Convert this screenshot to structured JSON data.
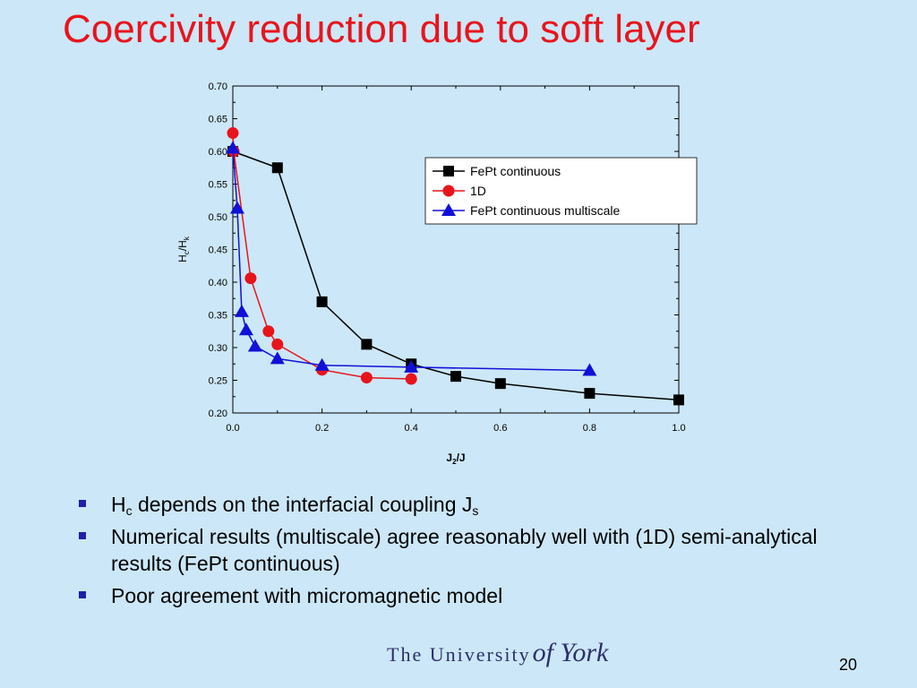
{
  "slide": {
    "title": "Coercivity reduction due to soft layer",
    "bullets": [
      {
        "text_before": "H",
        "sub1": "c",
        "text_mid": " depends on the interfacial coupling J",
        "sub2": "s"
      },
      {
        "text": "Numerical results (multiscale) agree reasonably well with (1D) semi-analytical results (FePt continuous)"
      },
      {
        "text": "Poor agreement with micromagnetic model"
      }
    ],
    "logo_text": "The University",
    "logo_script": "of York",
    "page_number": "20"
  },
  "colors": {
    "background": "#cce7f7",
    "title": "#e8141c",
    "bullet_marker": "#1f1fa8",
    "series_black": "#000000",
    "series_red": "#e8141c",
    "series_blue": "#1010d8"
  },
  "chart_data": {
    "type": "line",
    "title": "",
    "xlabel": {
      "main": "J",
      "sub": "2",
      "rest": "/J"
    },
    "ylabel": {
      "main": "H",
      "sub": "c",
      "mid": "/H",
      "sub2": "k"
    },
    "xlim": [
      0.0,
      1.0
    ],
    "ylim": [
      0.2,
      0.7
    ],
    "xticks": [
      "0.0",
      "0.2",
      "0.4",
      "0.6",
      "0.8",
      "1.0"
    ],
    "yticks": [
      "0.20",
      "0.25",
      "0.30",
      "0.35",
      "0.40",
      "0.45",
      "0.50",
      "0.55",
      "0.60",
      "0.65",
      "0.70"
    ],
    "legend_position": "top-right",
    "grid": false,
    "series": [
      {
        "name": "FePt continuous",
        "marker": "square",
        "color": "#000000",
        "x": [
          0.0,
          0.1,
          0.2,
          0.3,
          0.4,
          0.5,
          0.6,
          0.8,
          1.0
        ],
        "y": [
          0.6,
          0.575,
          0.37,
          0.305,
          0.275,
          0.256,
          0.245,
          0.23,
          0.22
        ]
      },
      {
        "name": "1D",
        "marker": "circle",
        "color": "#e8141c",
        "x": [
          0.0,
          0.002,
          0.04,
          0.08,
          0.1,
          0.2,
          0.3,
          0.4
        ],
        "y": [
          0.628,
          0.6,
          0.406,
          0.325,
          0.305,
          0.266,
          0.254,
          0.252
        ]
      },
      {
        "name": "FePt continuous multiscale",
        "marker": "triangle",
        "color": "#1010d8",
        "x": [
          0.0,
          0.01,
          0.02,
          0.03,
          0.05,
          0.1,
          0.2,
          0.4,
          0.8
        ],
        "y": [
          0.605,
          0.513,
          0.355,
          0.327,
          0.302,
          0.283,
          0.273,
          0.27,
          0.265
        ]
      }
    ]
  }
}
